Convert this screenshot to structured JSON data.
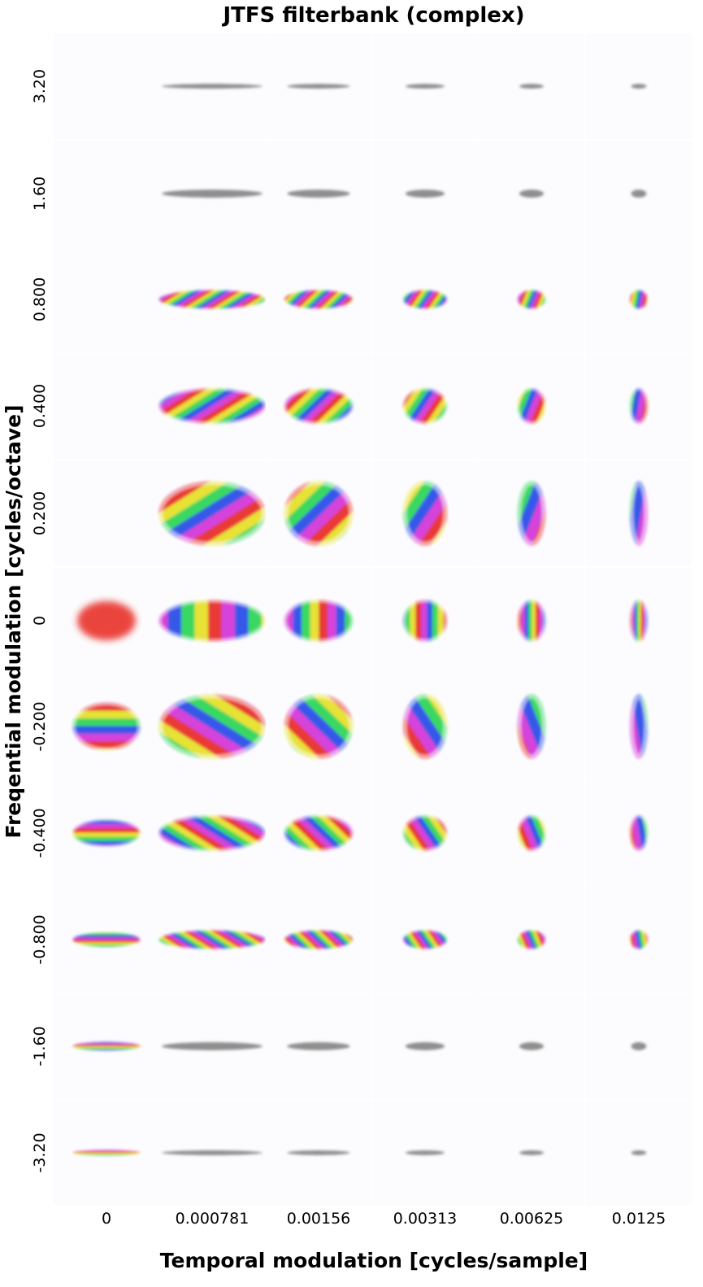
{
  "chart_data": {
    "type": "heatmap",
    "title": "JTFS filterbank (complex)",
    "xlabel": "Temporal modulation [cycles/sample]",
    "ylabel": "Freqential modulation [cycles/octave]",
    "x_ticks": [
      "0",
      "0.000781",
      "0.00156",
      "0.00313",
      "0.00625",
      "0.0125"
    ],
    "y_ticks": [
      "3.20",
      "1.60",
      "0.800",
      "0.400",
      "0.200",
      "0",
      "-0.200",
      "-0.400",
      "-0.800",
      "-1.60",
      "-3.20"
    ],
    "temporal_modulation": [
      0,
      0.000781,
      0.00156,
      0.00313,
      0.00625,
      0.0125
    ],
    "frequential_modulation": [
      3.2,
      1.6,
      0.8,
      0.4,
      0.2,
      0,
      -0.2,
      -0.4,
      -0.8,
      -1.6,
      -3.2
    ],
    "grid": false,
    "legend": "none",
    "missing_filters": [
      {
        "temporal_modulation": 0,
        "frequential_modulation": 3.2
      },
      {
        "temporal_modulation": 0,
        "frequential_modulation": 1.6
      },
      {
        "temporal_modulation": 0,
        "frequential_modulation": 0.8
      },
      {
        "temporal_modulation": 0,
        "frequential_modulation": 0.4
      },
      {
        "temporal_modulation": 0,
        "frequential_modulation": 0.2
      }
    ],
    "colors": {
      "phase_red": "#e8302c",
      "phase_yellow": "#e6e02a",
      "phase_green": "#2fd65a",
      "phase_blue": "#2a4fe8",
      "phase_magenta": "#d43ad8",
      "low_magnitude": "#6a6a6a"
    }
  }
}
